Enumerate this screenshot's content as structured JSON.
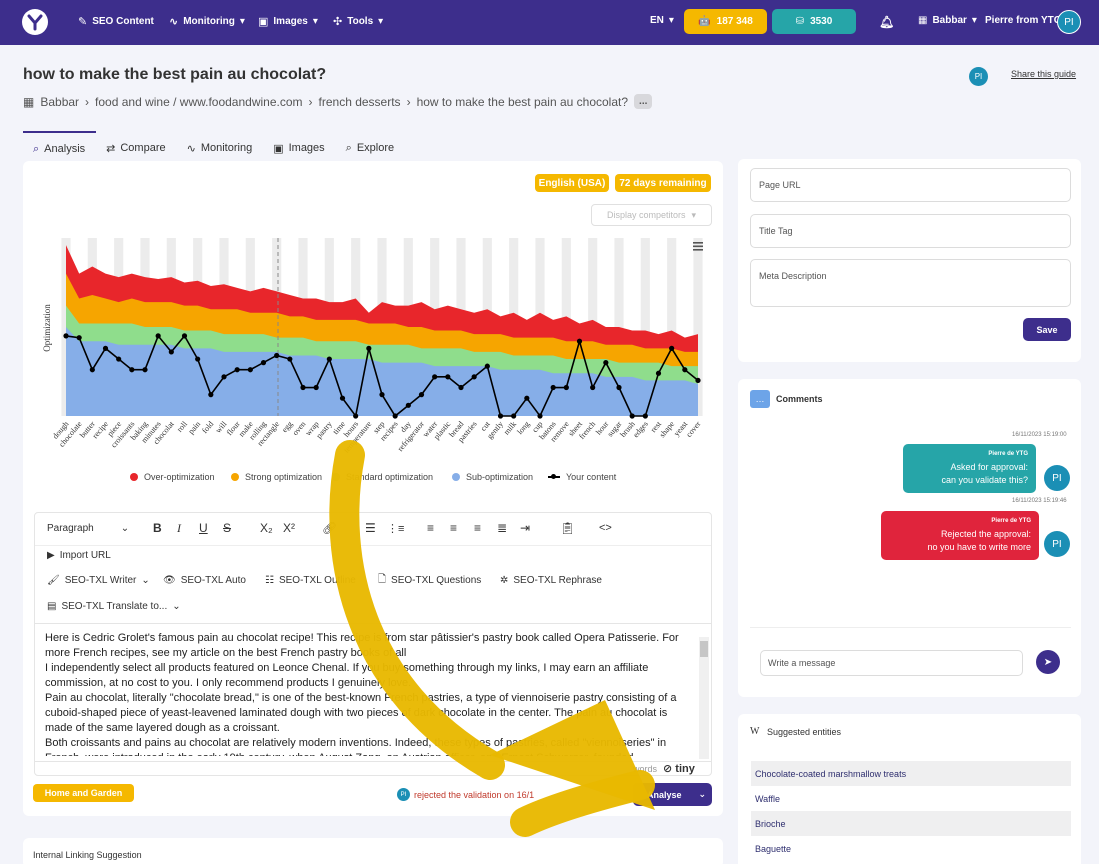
{
  "nav": {
    "items": [
      {
        "label": "SEO Content",
        "icon": "pen-icon"
      },
      {
        "label": "Monitoring",
        "icon": "pulse-icon"
      },
      {
        "label": "Images",
        "icon": "image-icon"
      },
      {
        "label": "Tools",
        "icon": "tools-icon"
      }
    ],
    "language": "EN",
    "credits_1": "187 348",
    "credits_2": "3530",
    "workspace": "Babbar",
    "user": "Pierre from YTG",
    "avatar_initials": "PI",
    "colors": {
      "bar": "#3d2e8c",
      "credits_1": "#f5b800",
      "credits_2": "#26a5a8"
    }
  },
  "header": {
    "title": "how to make the best pain au chocolat?",
    "breadcrumb": [
      "Babbar",
      "food and wine / www.foodandwine.com",
      "french desserts",
      "how to make the best pain au chocolat?"
    ],
    "breadcrumb_more": "...",
    "share": "Share this guide",
    "avatar_initials": "PI"
  },
  "tabs": [
    {
      "label": "Analysis",
      "icon": "magnify-icon"
    },
    {
      "label": "Compare",
      "icon": "compare-icon"
    },
    {
      "label": "Monitoring",
      "icon": "pulse-icon"
    },
    {
      "label": "Images",
      "icon": "image-icon"
    },
    {
      "label": "Explore",
      "icon": "search-icon"
    }
  ],
  "badges": {
    "language": "English (USA)",
    "remaining": "72 days remaining"
  },
  "display_competitors": "Display competitors",
  "chart_data": {
    "type": "area",
    "ylabel": "Optimization",
    "categories": [
      "dough",
      "chocolate",
      "butter",
      "recipe",
      "piece",
      "croissants",
      "baking",
      "minutes",
      "chocolat",
      "roll",
      "pain",
      "fold",
      "will",
      "flour",
      "make",
      "rolling",
      "rectangle",
      "egg",
      "oven",
      "wrap",
      "pastry",
      "time",
      "hours",
      "temperature",
      "step",
      "recipes",
      "day",
      "refrigerator",
      "water",
      "plastic",
      "bread",
      "pastries",
      "cut",
      "gently",
      "milk",
      "long",
      "cup",
      "batons",
      "remove",
      "sheet",
      "french",
      "hour",
      "sugar",
      "brush",
      "edges",
      "rest",
      "shape",
      "yeast",
      "cover"
    ],
    "series": [
      {
        "name": "Over-optimization",
        "color": "#e8262b",
        "values": [
          96,
          80,
          84,
          80,
          78,
          80,
          78,
          77,
          78,
          75,
          76,
          73,
          74,
          72,
          70,
          72,
          70,
          68,
          66,
          66,
          64,
          64,
          66,
          58,
          64,
          62,
          62,
          64,
          60,
          62,
          60,
          58,
          60,
          56,
          58,
          54,
          58,
          54,
          56,
          52,
          54,
          50,
          50,
          48,
          48,
          46,
          48,
          44,
          46
        ]
      },
      {
        "name": "Strong optimization",
        "color": "#f6a500",
        "values": [
          80,
          66,
          68,
          66,
          64,
          66,
          64,
          64,
          64,
          62,
          62,
          60,
          60,
          60,
          58,
          58,
          58,
          56,
          56,
          54,
          54,
          54,
          54,
          52,
          52,
          52,
          50,
          50,
          48,
          48,
          48,
          46,
          46,
          46,
          44,
          44,
          44,
          44,
          42,
          42,
          42,
          40,
          40,
          40,
          38,
          38,
          38,
          36,
          36
        ]
      },
      {
        "name": "Standard optimization",
        "color": "#8fdd8c",
        "values": [
          62,
          52,
          52,
          52,
          52,
          52,
          50,
          50,
          50,
          48,
          48,
          48,
          46,
          46,
          46,
          46,
          44,
          44,
          44,
          42,
          42,
          42,
          42,
          40,
          40,
          40,
          40,
          38,
          38,
          38,
          38,
          36,
          36,
          36,
          34,
          34,
          34,
          34,
          32,
          32,
          32,
          32,
          30,
          30,
          30,
          30,
          28,
          28,
          28
        ]
      },
      {
        "name": "Sub-optimization",
        "color": "#86aee8",
        "values": [
          50,
          42,
          42,
          42,
          40,
          40,
          40,
          40,
          40,
          38,
          38,
          38,
          36,
          36,
          36,
          36,
          36,
          34,
          34,
          34,
          32,
          32,
          32,
          32,
          30,
          30,
          30,
          30,
          28,
          28,
          28,
          28,
          28,
          26,
          26,
          26,
          26,
          24,
          24,
          24,
          24,
          22,
          22,
          22,
          20,
          20,
          20,
          20,
          18
        ]
      },
      {
        "name": "Your content",
        "color": "#000000",
        "values": [
          45,
          44,
          26,
          38,
          32,
          26,
          26,
          45,
          36,
          45,
          32,
          12,
          22,
          26,
          26,
          30,
          34,
          32,
          16,
          16,
          32,
          10,
          0,
          38,
          12,
          0,
          6,
          12,
          22,
          22,
          16,
          22,
          28,
          0,
          0,
          10,
          0,
          16,
          16,
          42,
          16,
          30,
          16,
          0,
          0,
          24,
          38,
          26,
          20
        ]
      }
    ],
    "ylim": [
      0,
      100
    ],
    "grid": "alternating column bands",
    "legend": "bottom"
  },
  "editor": {
    "block_format": "Paragraph",
    "toolbar2": {
      "import_url": "Import URL"
    },
    "toolbar3": [
      "SEO-TXL Writer",
      "SEO-TXL Auto",
      "SEO-TXL Outline",
      "SEO-TXL Questions",
      "SEO-TXL Rephrase"
    ],
    "toolbar4": "SEO-TXL Translate to...",
    "paragraphs": [
      "Here is Cedric Grolet's famous pain au chocolat recipe! This recipe is from star pâtissier's pastry book called Opera Patisserie. For more French recipes, see my article on the best French pastry books of all",
      "I independently select all products featured on Leonce Chenal. If you buy something through my links, I may earn an affiliate commission, at no cost to you. I only recommend products I genuinely love.",
      "Pain au chocolat, literally \"chocolate bread,\" is one of the best-known French pastries, a type of viennoiserie pastry consisting of a cuboid-shaped piece of yeast-leavened laminated dough with two pieces of dark chocolate in the center. The pain au chocolat is made of the same layered dough as a croissant.",
      "Both croissants and pains au chocolat are relatively modern inventions. Indeed, these types of pastries, called \"viennoiseries\" in French, were introduced in the early 19th century, when August Zang, an Austrian officer, and Ernest Schwarzer, founded"
    ],
    "word_count_suffix": "words",
    "brand": "tiny"
  },
  "footer_main": {
    "category": "Home and Garden",
    "status": "rejected the validation on 16/1",
    "avatar_initials": "PI",
    "analyse": "Analyse"
  },
  "meta_form": {
    "page_url": "Page URL",
    "title_tag": "Title Tag",
    "meta_description": "Meta Description",
    "save": "Save"
  },
  "comments": {
    "title": "Comments",
    "messages": [
      {
        "timestamp": "16/11/2023 15:19:00",
        "author": "Pierre de YTG",
        "lines": [
          "Asked for approval:",
          "can you validate this?"
        ],
        "color": "#26a5a8",
        "avatar": "PI"
      },
      {
        "timestamp": "16/11/2023 15:19:46",
        "author": "Pierre de YTG",
        "lines": [
          "Rejected the approval:",
          "no you have to write more"
        ],
        "color": "#e0243c",
        "avatar": "PI"
      }
    ],
    "input_placeholder": "Write a message"
  },
  "entities": {
    "title": "Suggested entities",
    "items": [
      "Chocolate-coated marshmallow treats",
      "Waffle",
      "Brioche",
      "Baguette"
    ]
  },
  "internal_linking": "Internal Linking Suggestion",
  "overlay_arrow_color": "#e8b800"
}
